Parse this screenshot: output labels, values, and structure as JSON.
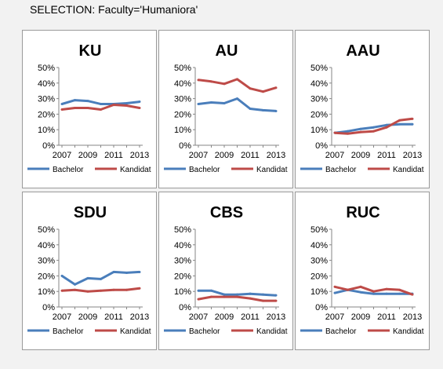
{
  "selection_label": "SELECTION: Faculty='Humaniora'",
  "colors": {
    "Bachelor": "#4a7ebb",
    "Kandidat": "#be4b48"
  },
  "chart_data": [
    {
      "type": "line",
      "title": "KU",
      "x": [
        2007,
        2008,
        2009,
        2010,
        2011,
        2012,
        2013
      ],
      "x_tick_labels": [
        "2007",
        "2009",
        "2011",
        "2013"
      ],
      "y_tick_labels": [
        "0%",
        "10%",
        "20%",
        "30%",
        "40%",
        "50%"
      ],
      "ylim": [
        0,
        50
      ],
      "legend": "bottom",
      "series": [
        {
          "name": "Bachelor",
          "values": [
            26.5,
            29,
            28.5,
            26.5,
            26.5,
            27,
            28
          ]
        },
        {
          "name": "Kandidat",
          "values": [
            23,
            24,
            24,
            23,
            26,
            25.5,
            24
          ]
        }
      ]
    },
    {
      "type": "line",
      "title": "AU",
      "x": [
        2007,
        2008,
        2009,
        2010,
        2011,
        2012,
        2013
      ],
      "x_tick_labels": [
        "2007",
        "2009",
        "2011",
        "2013"
      ],
      "y_tick_labels": [
        "0%",
        "10%",
        "20%",
        "30%",
        "40%",
        "50%"
      ],
      "ylim": [
        0,
        50
      ],
      "legend": "bottom",
      "series": [
        {
          "name": "Bachelor",
          "values": [
            26.5,
            27.5,
            27,
            30,
            23.5,
            22.5,
            22
          ]
        },
        {
          "name": "Kandidat",
          "values": [
            42,
            41,
            39.5,
            42.5,
            36.5,
            34.5,
            37
          ]
        }
      ]
    },
    {
      "type": "line",
      "title": "AAU",
      "x": [
        2007,
        2008,
        2009,
        2010,
        2011,
        2012,
        2013
      ],
      "x_tick_labels": [
        "2007",
        "2009",
        "2011",
        "2013"
      ],
      "y_tick_labels": [
        "0%",
        "10%",
        "20%",
        "30%",
        "40%",
        "50%"
      ],
      "ylim": [
        0,
        50
      ],
      "legend": "bottom",
      "series": [
        {
          "name": "Bachelor",
          "values": [
            8,
            9,
            10.5,
            11.5,
            13,
            13.5,
            13.5
          ]
        },
        {
          "name": "Kandidat",
          "values": [
            8,
            7.5,
            8.5,
            9,
            11.5,
            16,
            17
          ]
        }
      ]
    },
    {
      "type": "line",
      "title": "SDU",
      "x": [
        2007,
        2008,
        2009,
        2010,
        2011,
        2012,
        2013
      ],
      "x_tick_labels": [
        "2007",
        "2009",
        "2011",
        "2013"
      ],
      "y_tick_labels": [
        "0%",
        "10%",
        "20%",
        "30%",
        "40%",
        "50%"
      ],
      "ylim": [
        0,
        50
      ],
      "legend": "bottom",
      "series": [
        {
          "name": "Bachelor",
          "values": [
            20,
            14.5,
            18.5,
            18,
            22.5,
            22,
            22.5
          ]
        },
        {
          "name": "Kandidat",
          "values": [
            10.5,
            11,
            10,
            10.5,
            11,
            11,
            12
          ]
        }
      ]
    },
    {
      "type": "line",
      "title": "CBS",
      "x": [
        2007,
        2008,
        2009,
        2010,
        2011,
        2012,
        2013
      ],
      "x_tick_labels": [
        "2007",
        "2009",
        "2011",
        "2013"
      ],
      "y_tick_labels": [
        "0%",
        "10%",
        "20%",
        "30%",
        "40%",
        "50%"
      ],
      "ylim": [
        0,
        50
      ],
      "legend": "bottom",
      "series": [
        {
          "name": "Bachelor",
          "values": [
            10.5,
            10.5,
            8,
            8,
            8.5,
            8,
            7.5
          ]
        },
        {
          "name": "Kandidat",
          "values": [
            5,
            6.5,
            6.5,
            6.5,
            5.5,
            4,
            4
          ]
        }
      ]
    },
    {
      "type": "line",
      "title": "RUC",
      "x": [
        2007,
        2008,
        2009,
        2010,
        2011,
        2012,
        2013
      ],
      "x_tick_labels": [
        "2007",
        "2009",
        "2011",
        "2013"
      ],
      "y_tick_labels": [
        "0%",
        "10%",
        "20%",
        "30%",
        "40%",
        "50%"
      ],
      "ylim": [
        0,
        50
      ],
      "legend": "bottom",
      "series": [
        {
          "name": "Bachelor",
          "values": [
            9,
            11,
            9.5,
            8.5,
            8.5,
            8.5,
            8.5
          ]
        },
        {
          "name": "Kandidat",
          "values": [
            13,
            11,
            13,
            10,
            11.5,
            11,
            8
          ]
        }
      ]
    }
  ]
}
